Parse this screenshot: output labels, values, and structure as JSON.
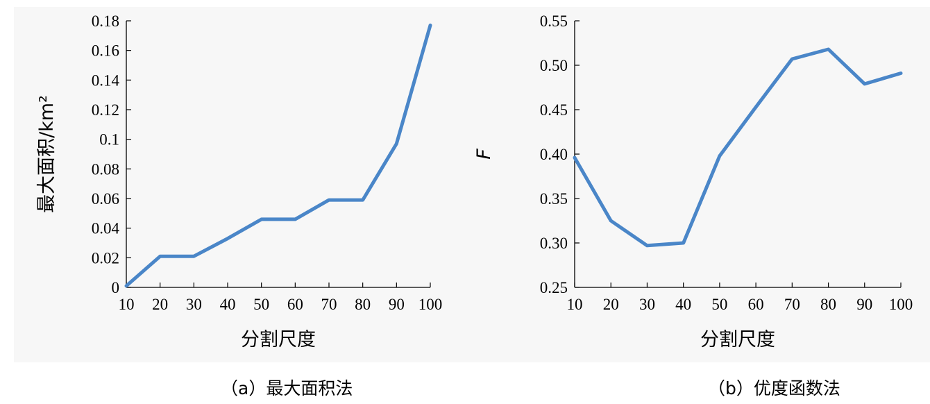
{
  "chart_data": [
    {
      "type": "line",
      "caption": "（a）最大面积法",
      "xlabel": "分割尺度",
      "ylabel": "最大面积/km²",
      "x": [
        10,
        20,
        30,
        40,
        50,
        60,
        70,
        80,
        90,
        100
      ],
      "xticks": [
        "10",
        "20",
        "30",
        "40",
        "50",
        "60",
        "70",
        "80",
        "90",
        "100"
      ],
      "xlim": [
        10,
        100
      ],
      "yticks": [
        "0",
        "0.02",
        "0.04",
        "0.06",
        "0.08",
        "0.1",
        "0.12",
        "0.14",
        "0.16",
        "0.18"
      ],
      "ylim": [
        0,
        0.18
      ],
      "series": [
        {
          "values": [
            0.001,
            0.021,
            0.021,
            0.033,
            0.046,
            0.046,
            0.059,
            0.059,
            0.097,
            0.177
          ]
        }
      ],
      "line_color": "#4a86c8",
      "grid": false
    },
    {
      "type": "line",
      "caption": "（b）优度函数法",
      "xlabel": "分割尺度",
      "ylabel": "F",
      "x": [
        10,
        20,
        30,
        40,
        50,
        60,
        70,
        80,
        90,
        100
      ],
      "xticks": [
        "10",
        "20",
        "30",
        "40",
        "50",
        "60",
        "70",
        "80",
        "90",
        "100"
      ],
      "xlim": [
        10,
        100
      ],
      "yticks": [
        "0.25",
        "0.30",
        "0.35",
        "0.40",
        "0.45",
        "0.50",
        "0.55"
      ],
      "ylim": [
        0.25,
        0.55
      ],
      "series": [
        {
          "values": [
            0.396,
            0.325,
            0.297,
            0.3,
            0.398,
            0.453,
            0.507,
            0.518,
            0.479,
            0.491
          ]
        }
      ],
      "line_color": "#4a86c8",
      "grid": false
    }
  ]
}
